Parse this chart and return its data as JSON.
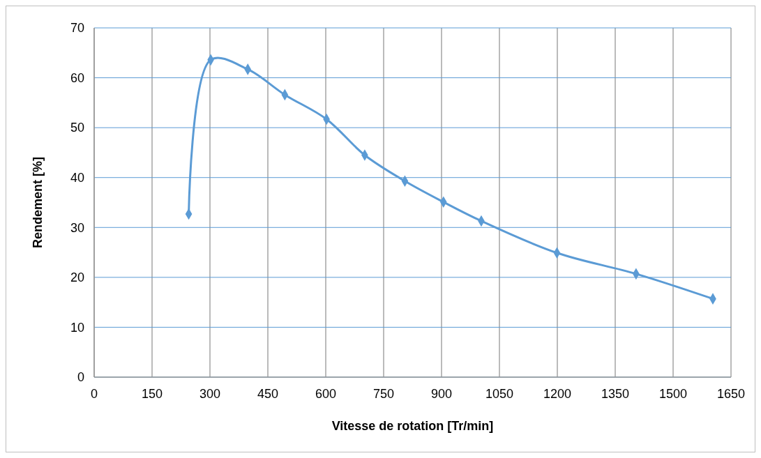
{
  "chart_data": {
    "type": "line",
    "xlabel": "Vitesse de rotation [Tr/min]",
    "ylabel": "Rendement [%]",
    "x": [
      245,
      302,
      398,
      494,
      602,
      701,
      805,
      905,
      1003,
      1199,
      1404,
      1603
    ],
    "series": [
      {
        "color": "#5b9bd5",
        "values": [
          32.7,
          63.6,
          61.7,
          56.6,
          51.7,
          44.5,
          39.3,
          35.1,
          31.3,
          24.9,
          20.7,
          15.7
        ]
      }
    ],
    "xlim": [
      0,
      1650
    ],
    "xticks": [
      0,
      150,
      300,
      450,
      600,
      750,
      900,
      1050,
      1200,
      1350,
      1500,
      1650
    ],
    "ylim": [
      0,
      70
    ],
    "yticks": [
      0,
      10,
      20,
      30,
      40,
      50,
      60,
      70
    ],
    "grid": true,
    "marker": "diamond",
    "line_style": "solid"
  }
}
